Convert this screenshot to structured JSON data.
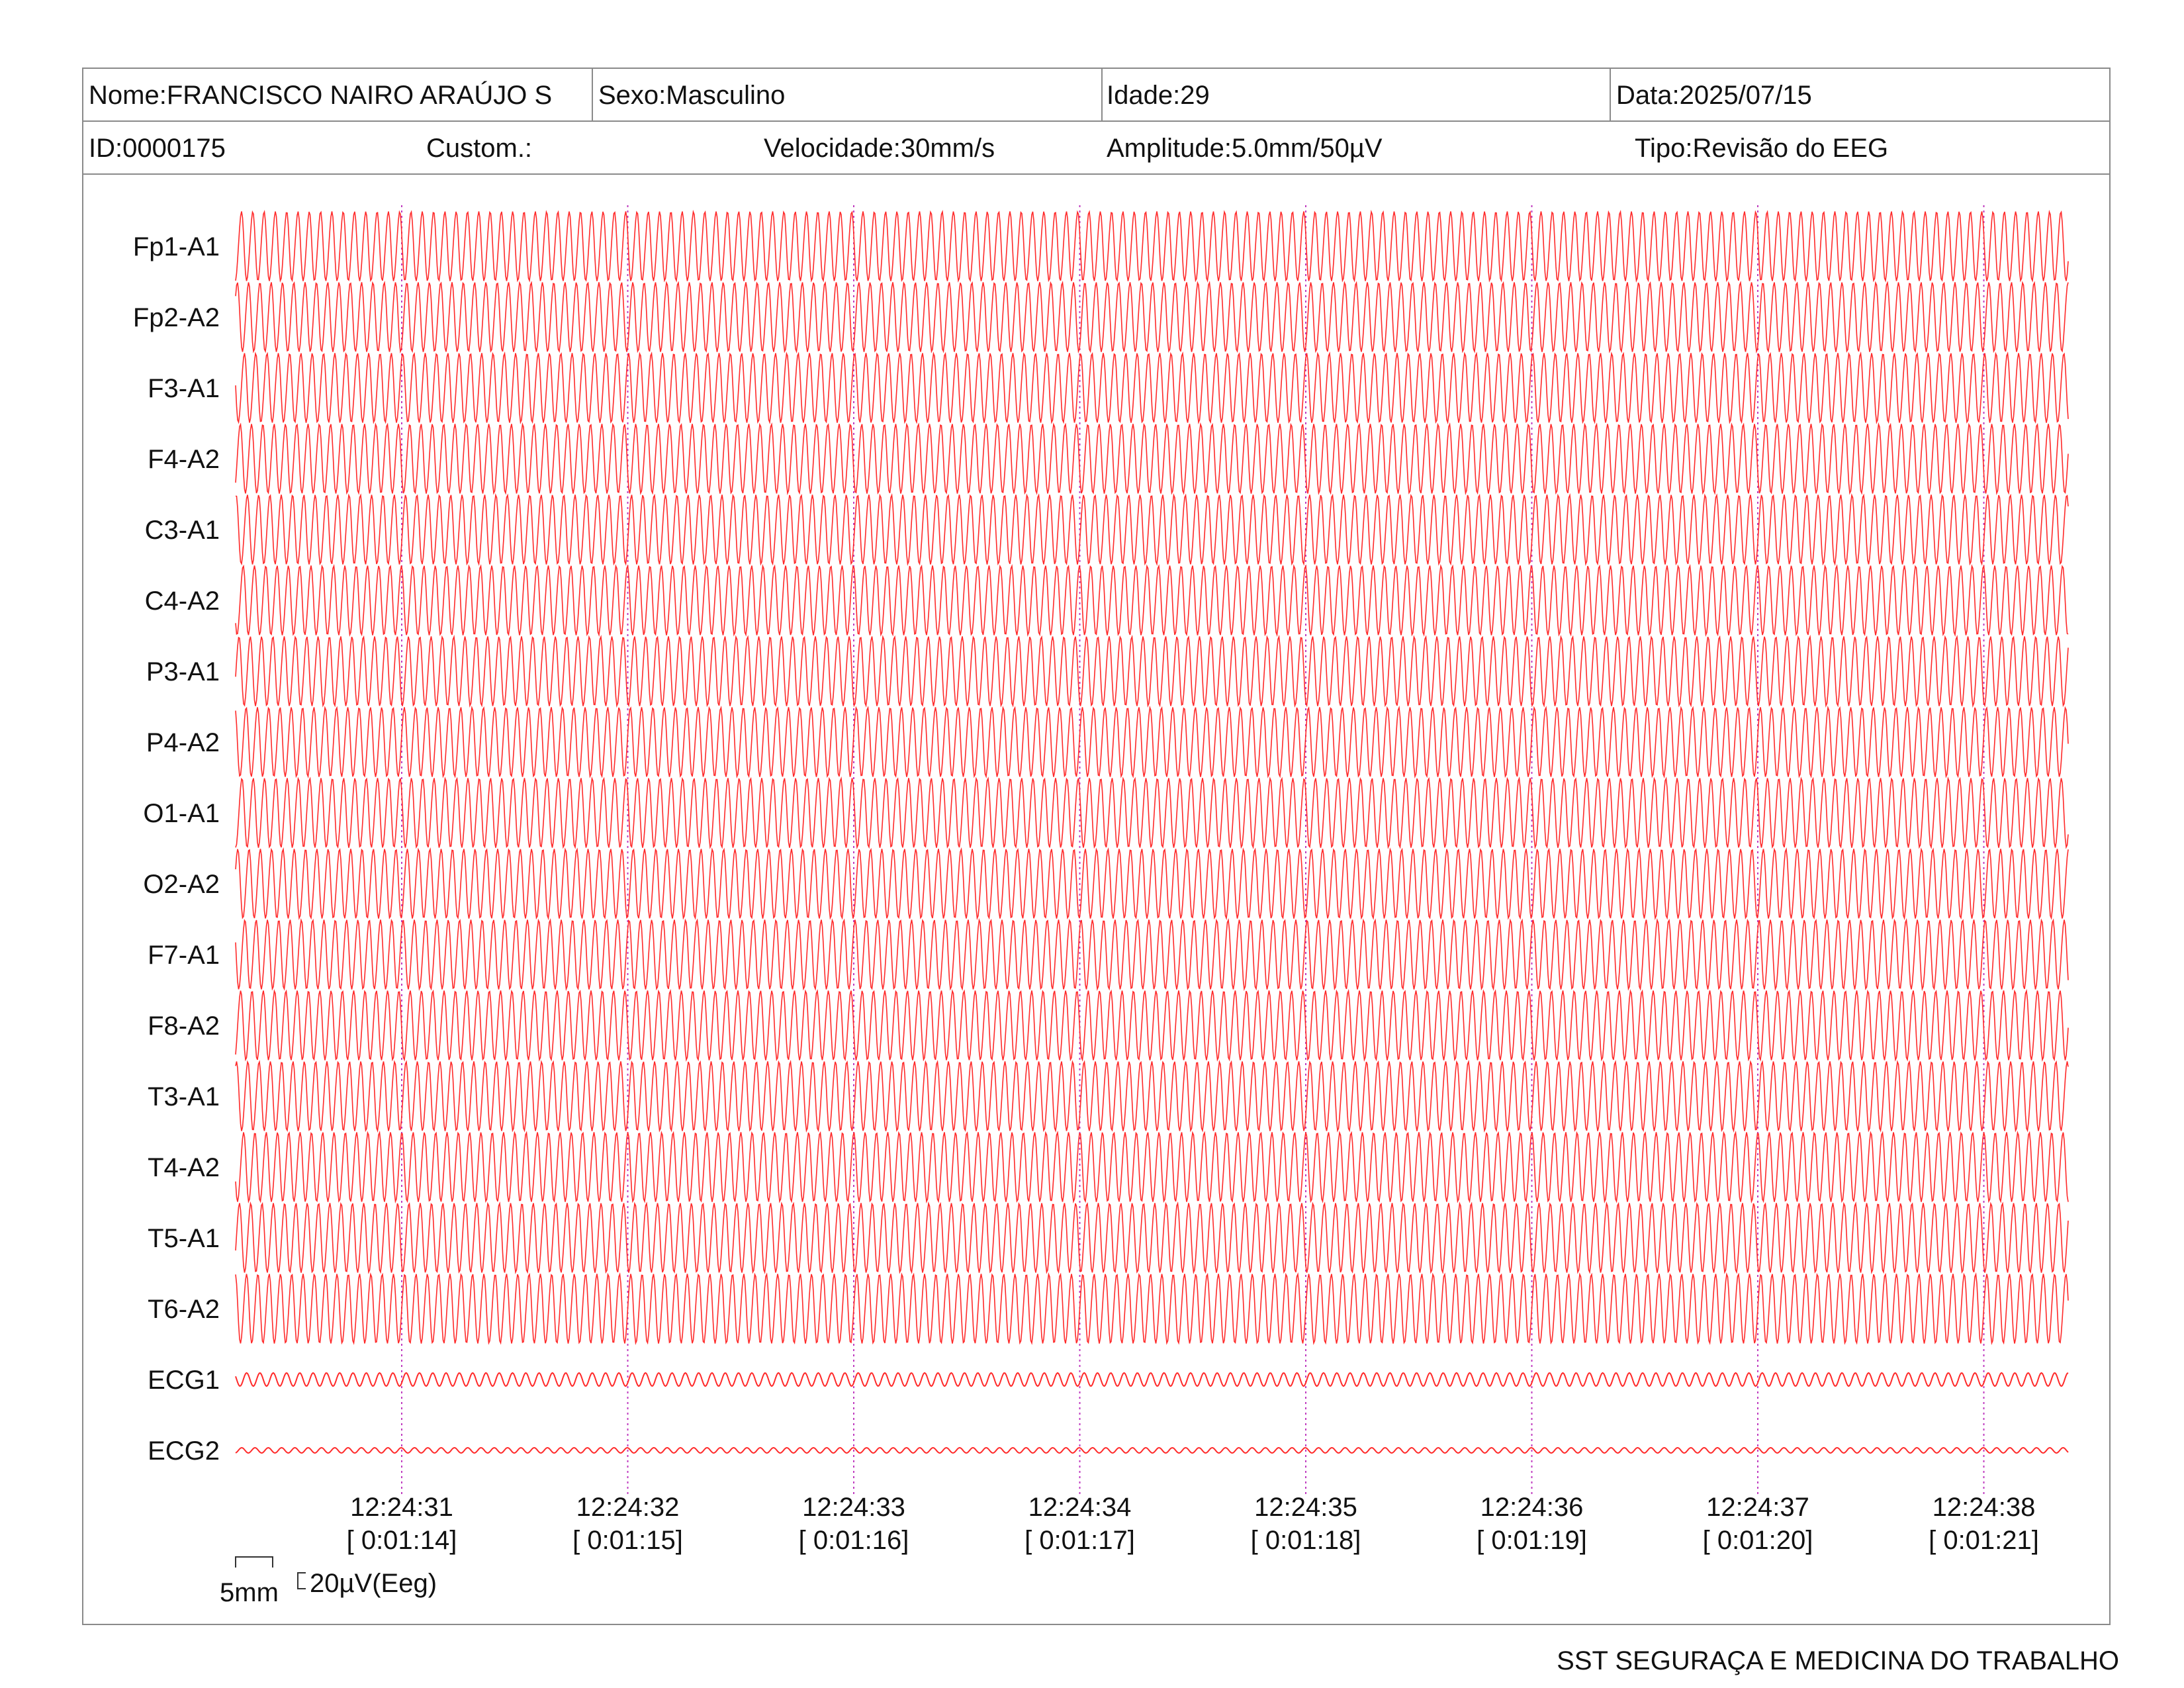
{
  "header": {
    "name": "Nome:FRANCISCO NAIRO ARAÚJO S",
    "sex": "Sexo:Masculino",
    "age": "Idade:29",
    "date": "Data:2025/07/15",
    "id": "ID:0000175",
    "custom": "Custom.:",
    "speed": "Velocidade:30mm/s",
    "amplitude": "Amplitude:5.0mm/50µV",
    "type": "Tipo:Revisão do EEG"
  },
  "chart_data": {
    "type": "line",
    "title": "",
    "channels": [
      "Fp1-A1",
      "Fp2-A2",
      "F3-A1",
      "F4-A2",
      "C3-A1",
      "C4-A2",
      "P3-A1",
      "P4-A2",
      "O1-A1",
      "O2-A2",
      "F7-A1",
      "F8-A2",
      "T3-A1",
      "T4-A2",
      "T5-A1",
      "T6-A2",
      "ECG1",
      "ECG2"
    ],
    "time_markers": [
      {
        "clock": "12:24:31",
        "elapsed": "[ 0:01:14]"
      },
      {
        "clock": "12:24:32",
        "elapsed": "[ 0:01:15]"
      },
      {
        "clock": "12:24:33",
        "elapsed": "[ 0:01:16]"
      },
      {
        "clock": "12:24:34",
        "elapsed": "[ 0:01:17]"
      },
      {
        "clock": "12:24:35",
        "elapsed": "[ 0:01:18]"
      },
      {
        "clock": "12:24:36",
        "elapsed": "[ 0:01:19]"
      },
      {
        "clock": "12:24:37",
        "elapsed": "[ 0:01:20]"
      },
      {
        "clock": "12:24:38",
        "elapsed": "[ 0:01:21]"
      }
    ],
    "eeg_cycles_per_second": 20,
    "ecg_cycles_per_second": 17,
    "trace_color": "#ff2a2a",
    "marker_color": "#c03cc0"
  },
  "calibration": {
    "time_label": "5mm",
    "amp_label": "20µV(Eeg)"
  },
  "footer": {
    "text": "SST SEGURAÇA E MEDICINA DO TRABALHO"
  }
}
